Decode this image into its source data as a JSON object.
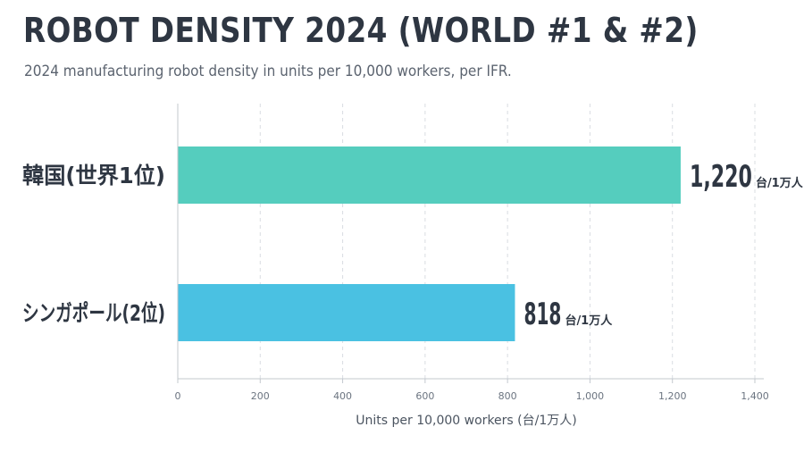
{
  "chart_data": {
    "type": "bar",
    "orientation": "horizontal",
    "title": "ROBOT DENSITY 2024 (WORLD #1 & #2)",
    "subtitle": "2024 manufacturing robot density in units per 10,000 workers, per IFR.",
    "categories": [
      "韓国(世界1位)",
      "シンガポール(2位)"
    ],
    "values": [
      1220,
      818
    ],
    "value_labels": [
      "1,220",
      "818"
    ],
    "value_unit": "台/1万人",
    "colors": [
      "#55cdbe",
      "#4ac1e2"
    ],
    "xlabel": "Units per 10,000 workers (台/1万人)",
    "xlim": [
      0,
      1400
    ],
    "xticks": [
      0,
      200,
      400,
      600,
      800,
      1000,
      1200,
      1400
    ],
    "xtick_labels": [
      "0",
      "200",
      "400",
      "600",
      "800",
      "1,000",
      "1,200",
      "1,400"
    ],
    "grid": true
  }
}
